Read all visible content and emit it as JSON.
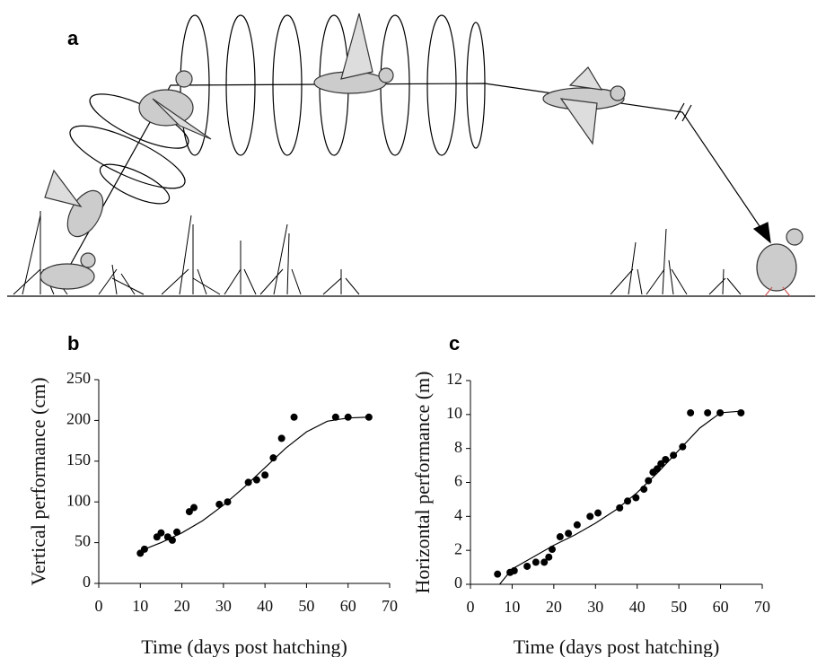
{
  "panel_a": {
    "label": "a"
  },
  "chart_data": [
    {
      "type": "scatter",
      "label": "b",
      "xlabel": "Time (days post hatching)",
      "ylabel": "Vertical performance (cm)",
      "xlim": [
        0,
        70
      ],
      "xticks": [
        0,
        10,
        20,
        30,
        40,
        50,
        60,
        70
      ],
      "ylim": [
        0,
        250
      ],
      "yticks": [
        0,
        50,
        100,
        150,
        200,
        250
      ],
      "color": "#000000",
      "points": {
        "x": [
          10,
          11,
          14,
          15,
          16.6,
          17.7,
          18.8,
          21.8,
          22.9,
          29,
          31,
          36,
          38,
          40,
          42,
          44,
          47,
          57,
          60,
          65
        ],
        "values": [
          37,
          42,
          57,
          62,
          57,
          53,
          63,
          88,
          93,
          97,
          100,
          124,
          127,
          133,
          154,
          178,
          204,
          204,
          204,
          204
        ]
      },
      "fit": {
        "x": [
          10,
          15,
          20,
          25,
          30,
          35,
          40,
          45,
          50,
          55,
          60,
          65
        ],
        "values": [
          40,
          50,
          62,
          77,
          96,
          118,
          142,
          166,
          186,
          199,
          203,
          204
        ]
      }
    },
    {
      "type": "scatter",
      "label": "c",
      "xlabel": "Time (days post hatching)",
      "ylabel": "Horizontal performance (m)",
      "xlim": [
        0,
        70
      ],
      "xticks": [
        0,
        10,
        20,
        30,
        40,
        50,
        60,
        70
      ],
      "ylim": [
        0,
        12
      ],
      "yticks": [
        0,
        2,
        4,
        6,
        8,
        10,
        12
      ],
      "color": "#000000",
      "points": {
        "x": [
          6.5,
          9.5,
          10.5,
          13.6,
          15.7,
          17.7,
          18.8,
          19.6,
          21.5,
          23.5,
          25.6,
          28.7,
          30.6,
          35.8,
          37.7,
          39.7,
          41.6,
          42.7,
          43.8,
          44.8,
          45.7,
          46.8,
          48.7,
          50.9,
          52.8,
          56.9,
          59.9,
          64.9
        ],
        "values": [
          0.6,
          0.7,
          0.8,
          1.06,
          1.3,
          1.3,
          1.6,
          2.06,
          2.8,
          3.0,
          3.5,
          4.0,
          4.2,
          4.5,
          4.9,
          5.1,
          5.6,
          6.1,
          6.6,
          6.8,
          7.1,
          7.35,
          7.6,
          8.1,
          10.1,
          10.1,
          10.1,
          10.1
        ]
      },
      "fit": {
        "x": [
          7,
          10,
          15,
          20,
          25,
          30,
          35,
          40,
          45,
          50,
          55,
          60,
          65
        ],
        "values": [
          0,
          0.9,
          1.6,
          2.3,
          2.9,
          3.6,
          4.4,
          5.4,
          6.6,
          7.9,
          9.2,
          10.1,
          10.2
        ]
      }
    }
  ]
}
